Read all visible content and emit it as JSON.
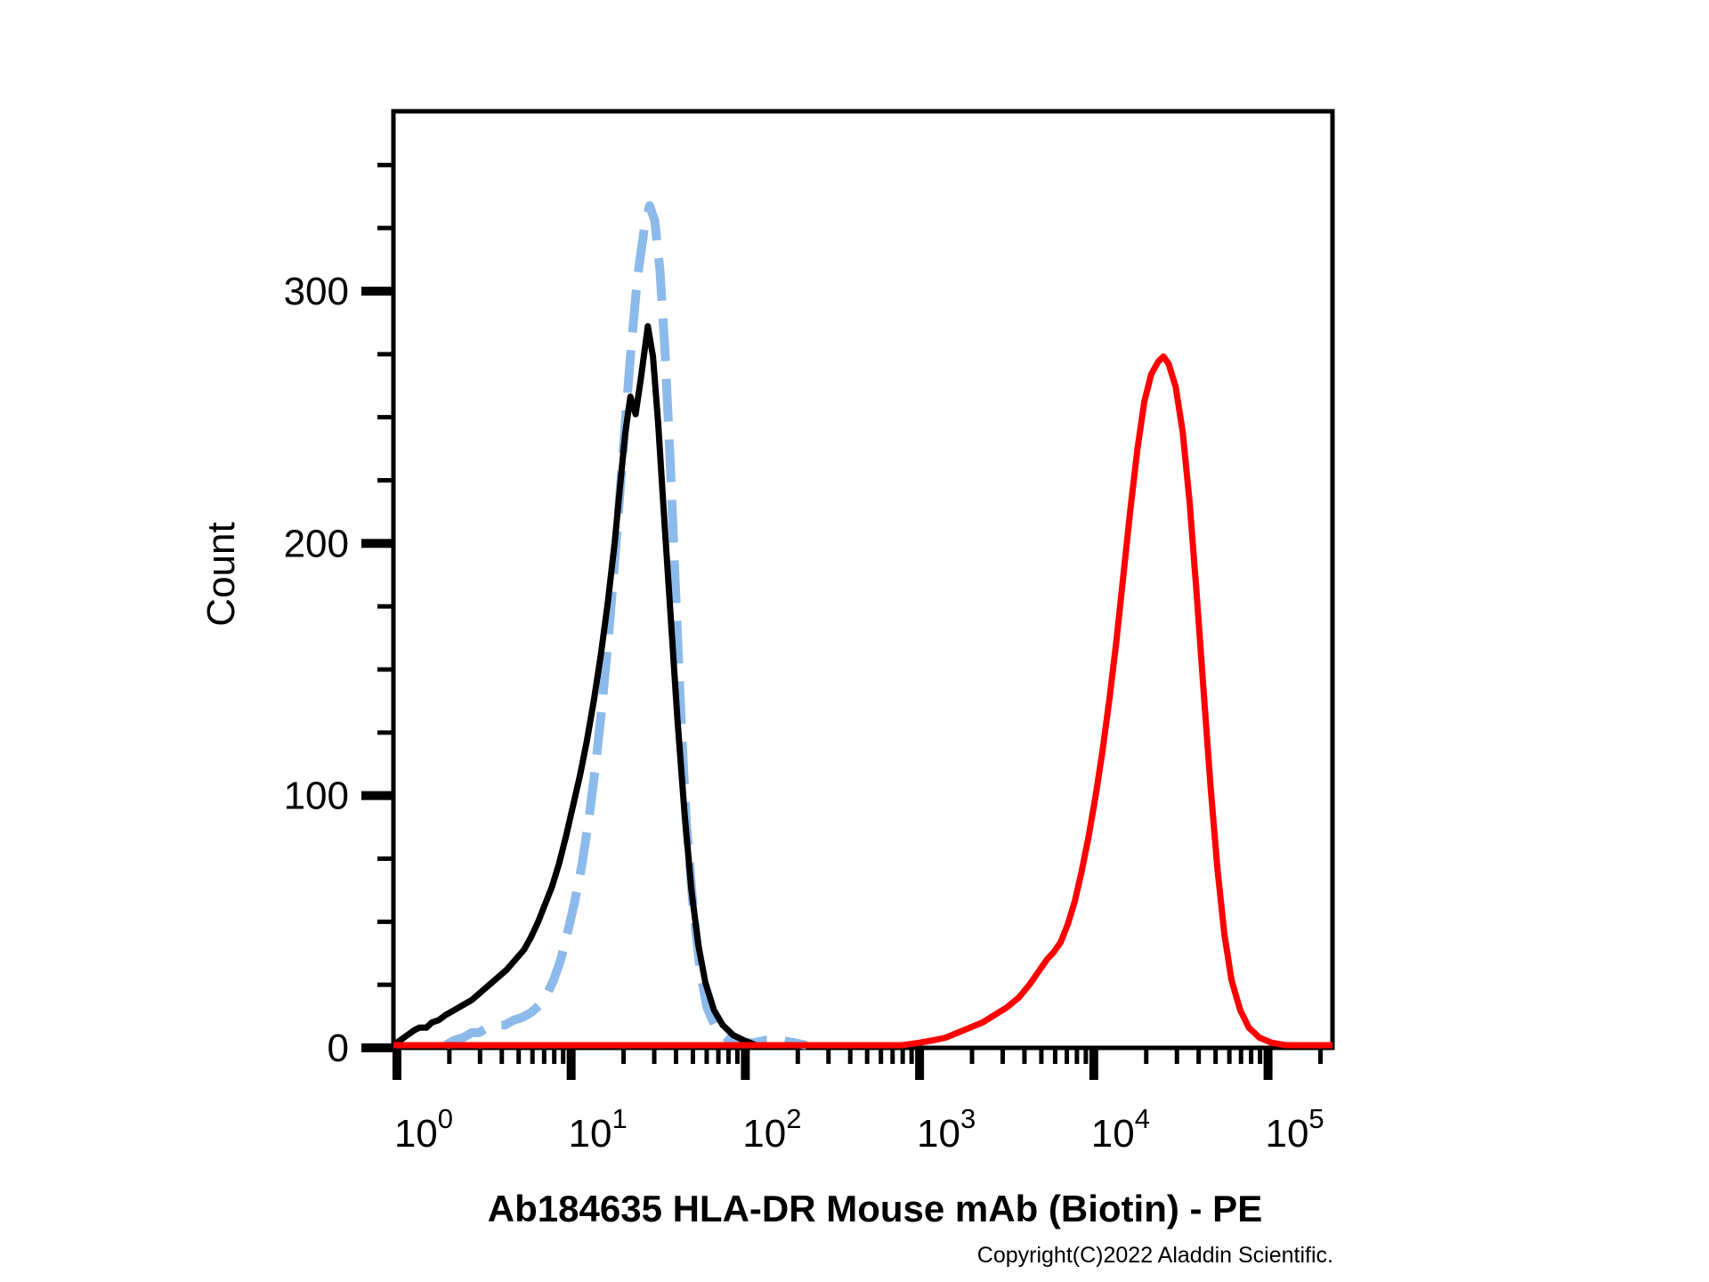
{
  "page": {
    "background": "#FFFFFF"
  },
  "title": "Ab184635 HLA-DR Mouse mAb (Biotin) - PE",
  "copyright": "Copyright(C)2022 Aladdin Scientific.",
  "chart_data": {
    "type": "line",
    "subtype": "flow-cytometry-histogram-overlay",
    "title": "Ab184635 HLA-DR Mouse mAb (Biotin) - PE",
    "xlabel": "",
    "ylabel": "Count",
    "grid": false,
    "legend": "none",
    "x_scale": "log10",
    "x_range_log10": [
      -0.02,
      5.37
    ],
    "x_decade_ticks": [
      0,
      1,
      2,
      3,
      4,
      5
    ],
    "x_tick_label_base": "10",
    "x_minor_tick_rule": "log-2-through-9-per-decade",
    "y_range": [
      0,
      371
    ],
    "y_major_ticks": [
      0,
      100,
      200,
      300
    ],
    "y_minor_interval": 25,
    "axis_color": "#000000",
    "series": [
      {
        "name": "isotype-control-dashed-blue",
        "color": "#8CBAEA",
        "style": "dashed",
        "stroke_width": 10,
        "dash": [
          48,
          20
        ],
        "points": [
          [
            0.28,
            0
          ],
          [
            0.33,
            2
          ],
          [
            0.38,
            3
          ],
          [
            0.43,
            5
          ],
          [
            0.47,
            5
          ],
          [
            0.52,
            7
          ],
          [
            0.57,
            8
          ],
          [
            0.62,
            8
          ],
          [
            0.67,
            10
          ],
          [
            0.72,
            11
          ],
          [
            0.77,
            13
          ],
          [
            0.82,
            16
          ],
          [
            0.86,
            20
          ],
          [
            0.9,
            26
          ],
          [
            0.94,
            34
          ],
          [
            0.98,
            45
          ],
          [
            1.02,
            57
          ],
          [
            1.06,
            71
          ],
          [
            1.1,
            89
          ],
          [
            1.14,
            111
          ],
          [
            1.18,
            137
          ],
          [
            1.22,
            167
          ],
          [
            1.26,
            201
          ],
          [
            1.3,
            238
          ],
          [
            1.34,
            274
          ],
          [
            1.38,
            305
          ],
          [
            1.42,
            325
          ],
          [
            1.45,
            334
          ],
          [
            1.48,
            328
          ],
          [
            1.51,
            308
          ],
          [
            1.54,
            275
          ],
          [
            1.57,
            230
          ],
          [
            1.6,
            180
          ],
          [
            1.63,
            131
          ],
          [
            1.66,
            90
          ],
          [
            1.7,
            55
          ],
          [
            1.74,
            30
          ],
          [
            1.78,
            15
          ],
          [
            1.83,
            7
          ],
          [
            1.89,
            3
          ],
          [
            1.96,
            1
          ],
          [
            2.05,
            1
          ],
          [
            2.12,
            2
          ],
          [
            2.2,
            2
          ],
          [
            2.28,
            1
          ],
          [
            2.35,
            0
          ]
        ]
      },
      {
        "name": "unstained-control-black",
        "color": "#000000",
        "style": "solid",
        "stroke_width": 7,
        "points": [
          [
            -0.02,
            0
          ],
          [
            0.02,
            2
          ],
          [
            0.06,
            4
          ],
          [
            0.1,
            6
          ],
          [
            0.13,
            7
          ],
          [
            0.17,
            7
          ],
          [
            0.2,
            9
          ],
          [
            0.24,
            10
          ],
          [
            0.28,
            12
          ],
          [
            0.33,
            14
          ],
          [
            0.38,
            16
          ],
          [
            0.43,
            18
          ],
          [
            0.48,
            21
          ],
          [
            0.53,
            24
          ],
          [
            0.58,
            27
          ],
          [
            0.63,
            30
          ],
          [
            0.68,
            34
          ],
          [
            0.73,
            38
          ],
          [
            0.77,
            43
          ],
          [
            0.81,
            49
          ],
          [
            0.85,
            56
          ],
          [
            0.89,
            63
          ],
          [
            0.93,
            72
          ],
          [
            0.97,
            83
          ],
          [
            1.01,
            95
          ],
          [
            1.05,
            107
          ],
          [
            1.09,
            121
          ],
          [
            1.13,
            137
          ],
          [
            1.17,
            155
          ],
          [
            1.21,
            176
          ],
          [
            1.25,
            200
          ],
          [
            1.28,
            222
          ],
          [
            1.31,
            243
          ],
          [
            1.34,
            258
          ],
          [
            1.37,
            251
          ],
          [
            1.4,
            265
          ],
          [
            1.44,
            286
          ],
          [
            1.47,
            274
          ],
          [
            1.5,
            247
          ],
          [
            1.53,
            214
          ],
          [
            1.57,
            172
          ],
          [
            1.61,
            130
          ],
          [
            1.65,
            93
          ],
          [
            1.69,
            62
          ],
          [
            1.73,
            40
          ],
          [
            1.77,
            25
          ],
          [
            1.82,
            14
          ],
          [
            1.87,
            8
          ],
          [
            1.93,
            4
          ],
          [
            1.99,
            2
          ],
          [
            2.06,
            0
          ]
        ]
      },
      {
        "name": "stained-sample-red",
        "color": "#FF0000",
        "style": "solid",
        "stroke_width": 7,
        "points": [
          [
            -0.02,
            0
          ],
          [
            2.9,
            0
          ],
          [
            3.0,
            1
          ],
          [
            3.08,
            2
          ],
          [
            3.15,
            3
          ],
          [
            3.22,
            5
          ],
          [
            3.29,
            7
          ],
          [
            3.36,
            9
          ],
          [
            3.43,
            12
          ],
          [
            3.5,
            15
          ],
          [
            3.57,
            19
          ],
          [
            3.63,
            24
          ],
          [
            3.68,
            29
          ],
          [
            3.73,
            34
          ],
          [
            3.77,
            37
          ],
          [
            3.81,
            41
          ],
          [
            3.85,
            48
          ],
          [
            3.89,
            57
          ],
          [
            3.93,
            69
          ],
          [
            3.97,
            83
          ],
          [
            4.01,
            99
          ],
          [
            4.05,
            117
          ],
          [
            4.09,
            138
          ],
          [
            4.13,
            161
          ],
          [
            4.17,
            187
          ],
          [
            4.21,
            213
          ],
          [
            4.25,
            237
          ],
          [
            4.29,
            256
          ],
          [
            4.33,
            267
          ],
          [
            4.37,
            272
          ],
          [
            4.4,
            274
          ],
          [
            4.43,
            271
          ],
          [
            4.47,
            262
          ],
          [
            4.51,
            244
          ],
          [
            4.55,
            216
          ],
          [
            4.59,
            180
          ],
          [
            4.63,
            141
          ],
          [
            4.67,
            103
          ],
          [
            4.71,
            70
          ],
          [
            4.75,
            44
          ],
          [
            4.79,
            26
          ],
          [
            4.84,
            14
          ],
          [
            4.89,
            7
          ],
          [
            4.95,
            3
          ],
          [
            5.02,
            1
          ],
          [
            5.1,
            0
          ],
          [
            5.37,
            0
          ]
        ]
      }
    ]
  }
}
